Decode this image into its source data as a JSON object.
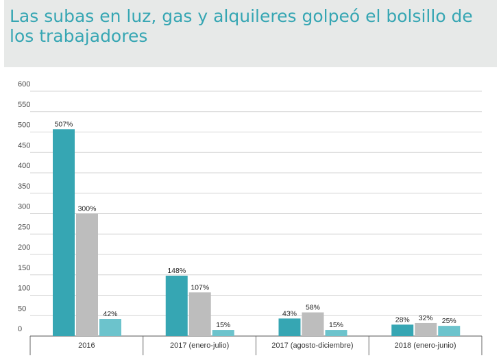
{
  "chart_data": {
    "type": "bar",
    "title": "Las subas en luz, gas y alquileres golpeó el bolsillo de los trabajadores",
    "categories": [
      "2016",
      "2017 (enero-julio)",
      "2017 (agosto-diciembre)",
      "2018 (enero-junio)"
    ],
    "series": [
      {
        "values": [
          507,
          148,
          43,
          28
        ],
        "labels": [
          "507%",
          "148%",
          "43%",
          "28%"
        ],
        "color": "#36a6b3"
      },
      {
        "values": [
          300,
          107,
          58,
          32
        ],
        "labels": [
          "300%",
          "107%",
          "58%",
          "32%"
        ],
        "color": "#bdbdbd"
      },
      {
        "values": [
          42,
          15,
          15,
          25
        ],
        "labels": [
          "42%",
          "15%",
          "15%",
          "25%"
        ],
        "color": "#6cc3cc"
      }
    ],
    "yticks": [
      "0",
      "50",
      "100",
      "150",
      "200",
      "250",
      "300",
      "350",
      "400",
      "450",
      "500",
      "550",
      "600"
    ],
    "ylim": [
      0,
      600
    ],
    "grid": true,
    "legend": "none"
  }
}
